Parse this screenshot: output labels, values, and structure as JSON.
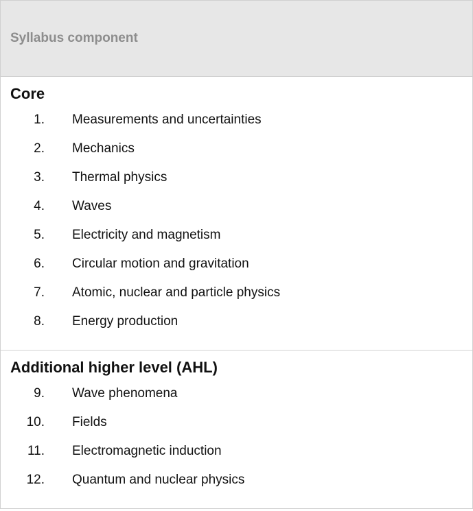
{
  "header": {
    "title": "Syllabus component"
  },
  "sections": [
    {
      "title": "Core",
      "items": [
        {
          "num": "1.",
          "text": "Measurements and uncertainties"
        },
        {
          "num": "2.",
          "text": "Mechanics"
        },
        {
          "num": "3.",
          "text": "Thermal physics"
        },
        {
          "num": "4.",
          "text": "Waves"
        },
        {
          "num": "5.",
          "text": "Electricity and magnetism"
        },
        {
          "num": "6.",
          "text": "Circular motion and gravitation"
        },
        {
          "num": "7.",
          "text": "Atomic, nuclear and particle physics"
        },
        {
          "num": "8.",
          "text": "Energy production"
        }
      ]
    },
    {
      "title": "Additional higher level (AHL)",
      "items": [
        {
          "num": "9.",
          "text": "Wave phenomena"
        },
        {
          "num": "10.",
          "text": "Fields"
        },
        {
          "num": "11.",
          "text": "Electromagnetic induction"
        },
        {
          "num": "12.",
          "text": "Quantum and nuclear physics"
        }
      ]
    }
  ],
  "style": {
    "header_bg": "#e7e7e7",
    "header_text_color": "#8d8d8d",
    "border_color": "#d0d0d0",
    "body_text_color": "#111111",
    "background": "#ffffff",
    "header_fontsize": 19,
    "section_title_fontsize": 22,
    "item_fontsize": 19
  }
}
